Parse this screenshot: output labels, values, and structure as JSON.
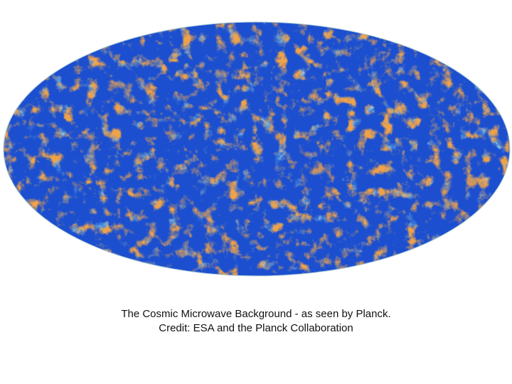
{
  "image": {
    "subject": "cmb-mollweide-map",
    "colors": {
      "cold_deep": "#1a4fd0",
      "cold": "#3f86dd",
      "cool": "#7db8e6",
      "neutral": "#b9d7d8",
      "warm": "#e6c48a",
      "hot": "#f0a24a",
      "background": "#ffffff"
    }
  },
  "caption": {
    "line1": "The Cosmic Microwave Background - as seen by Planck.",
    "line2": "Credit: ESA and the Planck Collaboration"
  }
}
